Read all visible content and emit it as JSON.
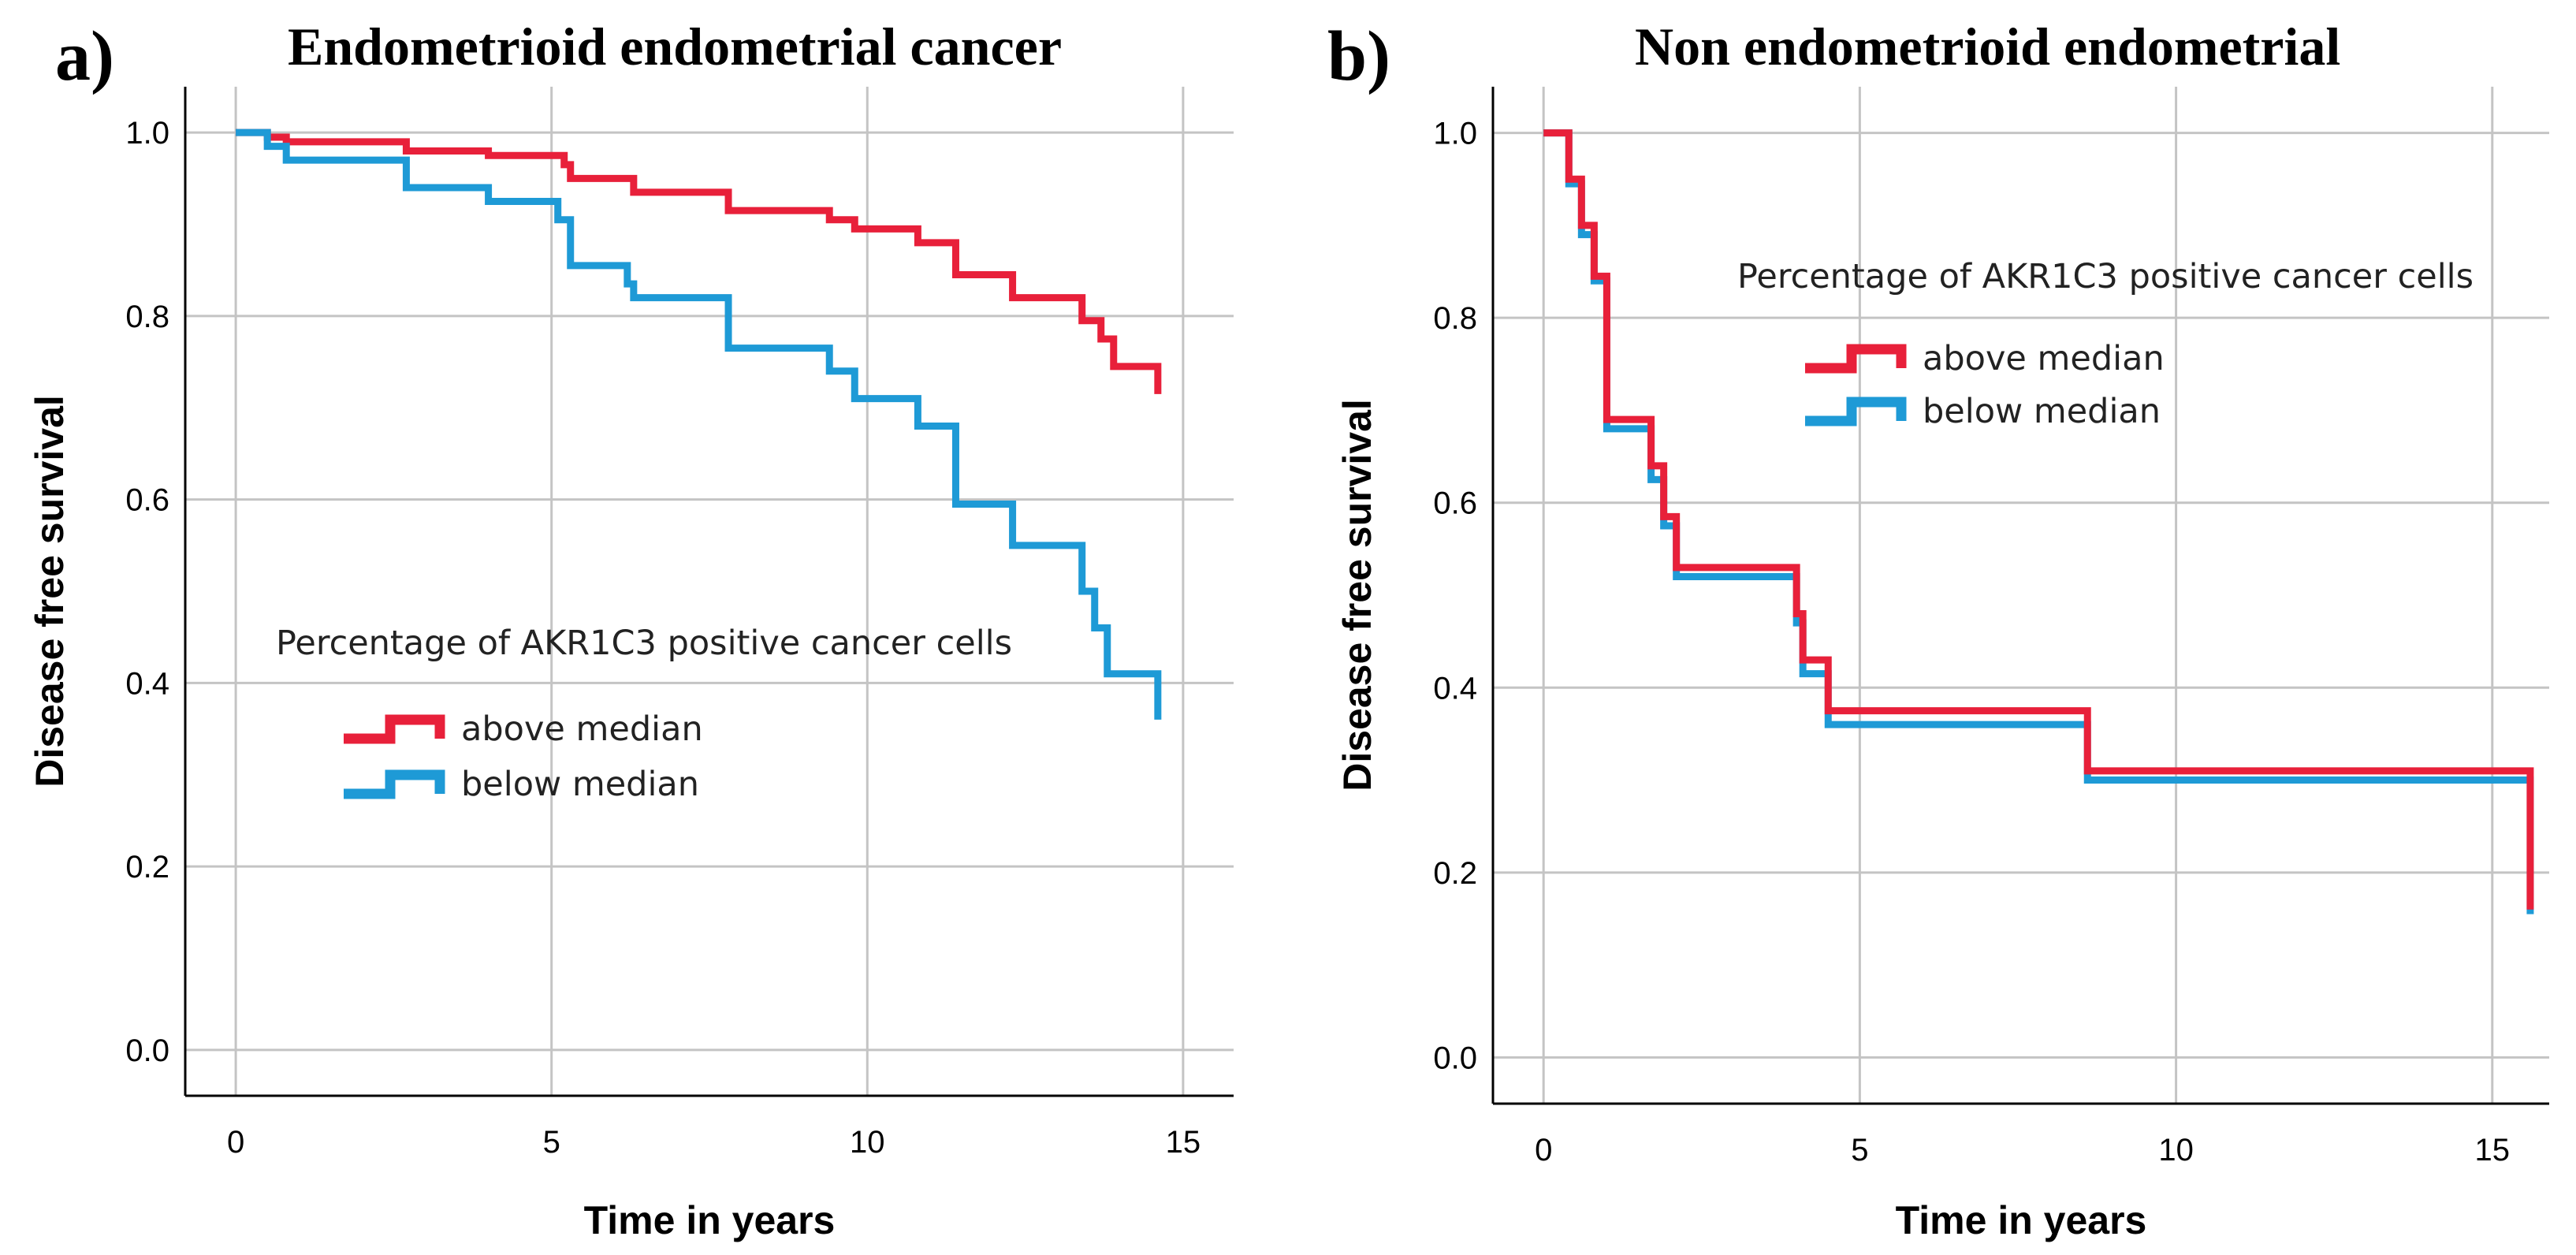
{
  "chart_data": [
    {
      "id": "a",
      "type": "line",
      "panel_label": "a)",
      "title": "Endometrioid endometrial cancer",
      "xlabel": "Time in years",
      "ylabel": "Disease free survival",
      "xlim": [
        -0.8,
        15.8
      ],
      "ylim": [
        -0.05,
        1.05
      ],
      "xticks": [
        0,
        5,
        10,
        15
      ],
      "yticks": [
        0.0,
        0.2,
        0.4,
        0.6,
        0.8,
        1.0
      ],
      "xtick_labels": [
        "0",
        "5",
        "10",
        "15"
      ],
      "ytick_labels": [
        "0.0",
        "0.2",
        "0.4",
        "0.6",
        "0.8",
        "1.0"
      ],
      "grid": true,
      "legend": {
        "title": "Percentage of AKR1C3 positive cancer cells",
        "position": "middle-left",
        "entries": [
          "above median",
          "below median"
        ]
      },
      "series": [
        {
          "name": "above median",
          "color": "#e8203a",
          "x": [
            0,
            0.5,
            0.8,
            2.7,
            4.0,
            5.2,
            5.3,
            6.3,
            7.8,
            9.4,
            9.8,
            10.8,
            11.4,
            12.3,
            13.4,
            13.7,
            13.9
          ],
          "y": [
            1.0,
            0.995,
            0.99,
            0.98,
            0.975,
            0.965,
            0.95,
            0.935,
            0.915,
            0.905,
            0.895,
            0.88,
            0.845,
            0.82,
            0.795,
            0.775,
            0.745
          ],
          "end_x": 14.6,
          "final_drop": 0.715
        },
        {
          "name": "below median",
          "color": "#1e9ad6",
          "x": [
            0,
            0.5,
            0.8,
            2.7,
            4.0,
            5.1,
            5.3,
            6.2,
            6.3,
            7.8,
            9.4,
            9.8,
            10.8,
            11.4,
            12.3,
            13.4,
            13.6,
            13.8,
            14.0
          ],
          "y": [
            1.0,
            0.985,
            0.97,
            0.94,
            0.925,
            0.905,
            0.855,
            0.835,
            0.82,
            0.765,
            0.74,
            0.71,
            0.68,
            0.595,
            0.55,
            0.5,
            0.46,
            0.41,
            0.41
          ],
          "end_x": 14.6,
          "final_drop": 0.36
        }
      ]
    },
    {
      "id": "b",
      "type": "line",
      "panel_label": "b)",
      "title": "Non endometrioid endometrial",
      "xlabel": "Time in years",
      "ylabel": "Disease free survival",
      "xlim": [
        -0.8,
        15.9
      ],
      "ylim": [
        -0.05,
        1.05
      ],
      "xticks": [
        0,
        5,
        10,
        15
      ],
      "yticks": [
        0.0,
        0.2,
        0.4,
        0.6,
        0.8,
        1.0
      ],
      "xtick_labels": [
        "0",
        "5",
        "10",
        "15"
      ],
      "ytick_labels": [
        "0.0",
        "0.2",
        "0.4",
        "0.6",
        "0.8",
        "1.0"
      ],
      "grid": true,
      "legend": {
        "title": "Percentage of AKR1C3 positive cancer cells",
        "position": "top-center",
        "entries": [
          "above median",
          "below median"
        ]
      },
      "series": [
        {
          "name": "below median",
          "color": "#1e9ad6",
          "x": [
            0,
            0.4,
            0.6,
            0.8,
            1.0,
            1.7,
            1.9,
            2.0,
            2.1,
            4.0,
            4.1,
            4.3,
            4.5,
            8.6
          ],
          "y": [
            1.0,
            0.945,
            0.89,
            0.84,
            0.68,
            0.625,
            0.575,
            0.575,
            0.52,
            0.47,
            0.415,
            0.415,
            0.36,
            0.3
          ],
          "end_x": 15.6,
          "final_drop": 0.155
        },
        {
          "name": "above median",
          "color": "#e8203a",
          "x": [
            0,
            0.4,
            0.6,
            0.8,
            1.0,
            1.7,
            1.9,
            2.0,
            2.1,
            4.0,
            4.1,
            4.3,
            4.5,
            8.6
          ],
          "y": [
            1.0,
            0.95,
            0.9,
            0.845,
            0.69,
            0.64,
            0.585,
            0.585,
            0.53,
            0.48,
            0.43,
            0.43,
            0.375,
            0.31
          ],
          "end_x": 15.6,
          "final_drop": 0.16
        }
      ]
    }
  ]
}
